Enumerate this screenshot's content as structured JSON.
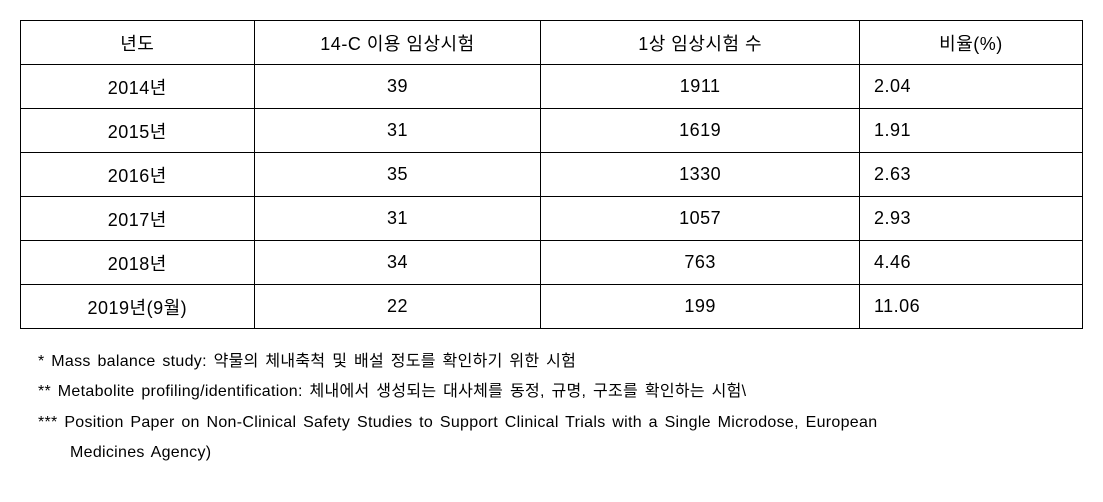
{
  "table": {
    "columns": [
      {
        "key": "year",
        "label": "년도",
        "align": "center",
        "width": "22%"
      },
      {
        "key": "c14",
        "label": "14-C 이용 임상시험",
        "align": "center",
        "width": "27%"
      },
      {
        "key": "phase1",
        "label": "1상 임상시험 수",
        "align": "center",
        "width": "30%"
      },
      {
        "key": "ratio",
        "label": "비율(%)",
        "align": "left",
        "width": "21%"
      }
    ],
    "rows": [
      {
        "year": "2014년",
        "c14": "39",
        "phase1": "1911",
        "ratio": "2.04"
      },
      {
        "year": "2015년",
        "c14": "31",
        "phase1": "1619",
        "ratio": "1.91"
      },
      {
        "year": "2016년",
        "c14": "35",
        "phase1": "1330",
        "ratio": "2.63"
      },
      {
        "year": "2017년",
        "c14": "31",
        "phase1": "1057",
        "ratio": "2.93"
      },
      {
        "year": "2018년",
        "c14": "34",
        "phase1": "763",
        "ratio": "4.46"
      },
      {
        "year": "2019년(9월)",
        "c14": "22",
        "phase1": "199",
        "ratio": "11.06"
      }
    ],
    "border_color": "#000000",
    "cell_font_size": 18,
    "header_font_weight": "normal"
  },
  "footnotes": [
    {
      "text": "* Mass balance study: 약물의 체내축척 및 배설 정도를 확인하기 위한 시험",
      "indent": false
    },
    {
      "text": "** Metabolite profiling/identification: 체내에서 생성되는 대사체를 동정, 규명, 구조를 확인하는 시험\\",
      "indent": false
    },
    {
      "text": "*** Position Paper on Non-Clinical Safety Studies to Support Clinical Trials with a Single Microdose, European",
      "indent": false
    },
    {
      "text": "Medicines Agency)",
      "indent": true
    }
  ],
  "styling": {
    "background_color": "#ffffff",
    "text_color": "#000000",
    "footnote_font_size": 16,
    "container_width": 1063
  }
}
